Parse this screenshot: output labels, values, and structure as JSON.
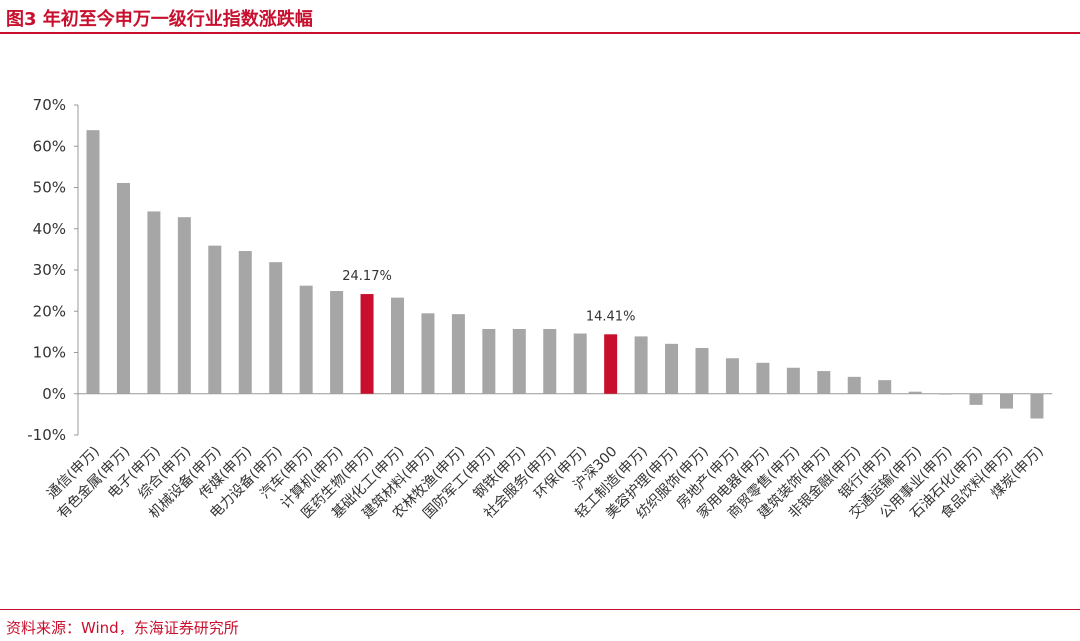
{
  "header": {
    "title": "图3 年初至今申万一级行业指数涨跌幅"
  },
  "footer": {
    "source": "资料来源：Wind，东海证券研究所"
  },
  "colors": {
    "bar": "#a6a6a6",
    "highlight": "#c8102e",
    "accent": "#c8102e"
  },
  "chart_data": {
    "type": "bar",
    "title": "",
    "xlabel": "",
    "ylabel": "",
    "ylim": [
      -10,
      70
    ],
    "yticks": [
      "70%",
      "60%",
      "50%",
      "40%",
      "30%",
      "20%",
      "10%",
      "0%",
      "-10%"
    ],
    "legend": "none",
    "grid": false,
    "categories": [
      "通信(申万)",
      "有色金属(申万)",
      "电子(申万)",
      "综合(申万)",
      "机械设备(申万)",
      "传媒(申万)",
      "电力设备(申万)",
      "汽车(申万)",
      "计算机(申万)",
      "医药生物(申万)",
      "基础化工(申万)",
      "建筑材料(申万)",
      "农林牧渔(申万)",
      "国防军工(申万)",
      "钢铁(申万)",
      "社会服务(申万)",
      "环保(申万)",
      "沪深300",
      "轻工制造(申万)",
      "美容护理(申万)",
      "纺织服饰(申万)",
      "房地产(申万)",
      "家用电器(申万)",
      "商贸零售(申万)",
      "建筑装饰(申万)",
      "非银金融(申万)",
      "银行(申万)",
      "交通运输(申万)",
      "公用事业(申万)",
      "石油石化(申万)",
      "食品饮料(申万)",
      "煤炭(申万)"
    ],
    "values": [
      63.9,
      51.1,
      44.2,
      42.8,
      35.9,
      34.6,
      31.9,
      26.2,
      24.9,
      24.17,
      23.3,
      19.5,
      19.3,
      15.7,
      15.7,
      15.7,
      14.6,
      14.41,
      13.9,
      12.1,
      11.1,
      8.6,
      7.5,
      6.3,
      5.5,
      4.1,
      3.3,
      0.5,
      -0.1,
      -2.7,
      -3.6,
      -6.0
    ],
    "highlighted": [
      9,
      17
    ],
    "data_labels": [
      {
        "index": 9,
        "text": "24.17%"
      },
      {
        "index": 17,
        "text": "14.41%"
      }
    ]
  }
}
